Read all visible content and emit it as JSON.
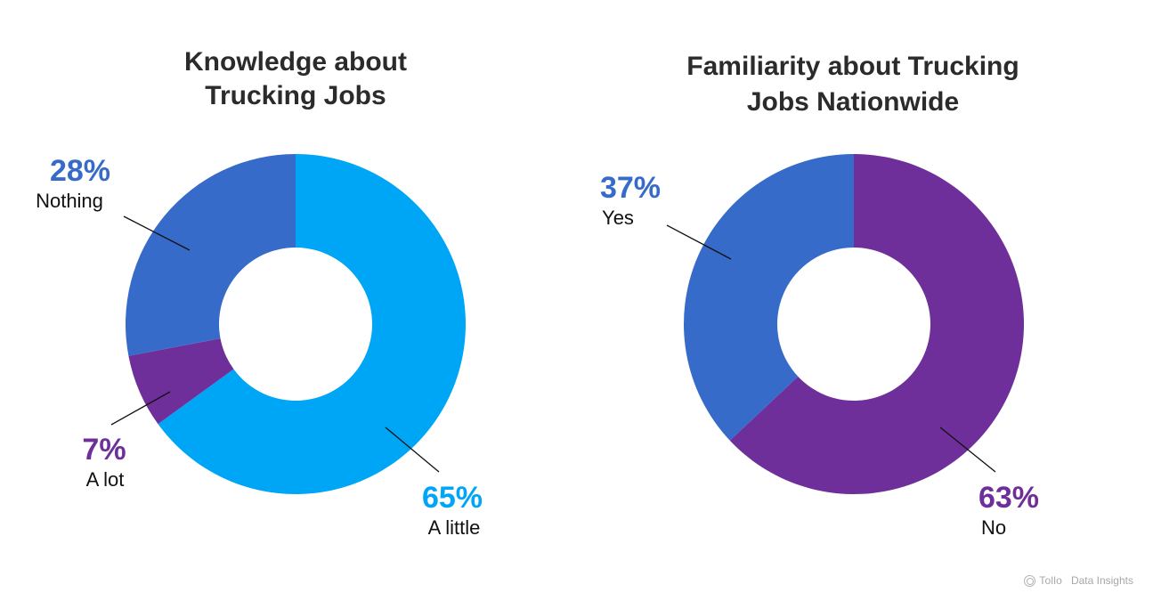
{
  "chart_data": [
    {
      "type": "pie",
      "title_lines": [
        "Knowledge about",
        "Trucking Jobs"
      ],
      "slices": [
        {
          "label": "A little",
          "value": 65,
          "value_label": "65%",
          "color": "#00a6f6"
        },
        {
          "label": "A lot",
          "value": 7,
          "value_label": "7%",
          "color": "#6e2f9a"
        },
        {
          "label": "Nothing",
          "value": 28,
          "value_label": "28%",
          "color": "#376bc9"
        }
      ]
    },
    {
      "type": "pie",
      "title_lines": [
        "Familiarity about Trucking",
        "Jobs Nationwide"
      ],
      "slices": [
        {
          "label": "No",
          "value": 63,
          "value_label": "63%",
          "color": "#6e2f9a"
        },
        {
          "label": "Yes",
          "value": 37,
          "value_label": "37%",
          "color": "#376bc9"
        }
      ]
    }
  ],
  "watermark": {
    "brand": "Tollo",
    "text": "Data Insights",
    "icon": "tollo-logo-icon"
  }
}
